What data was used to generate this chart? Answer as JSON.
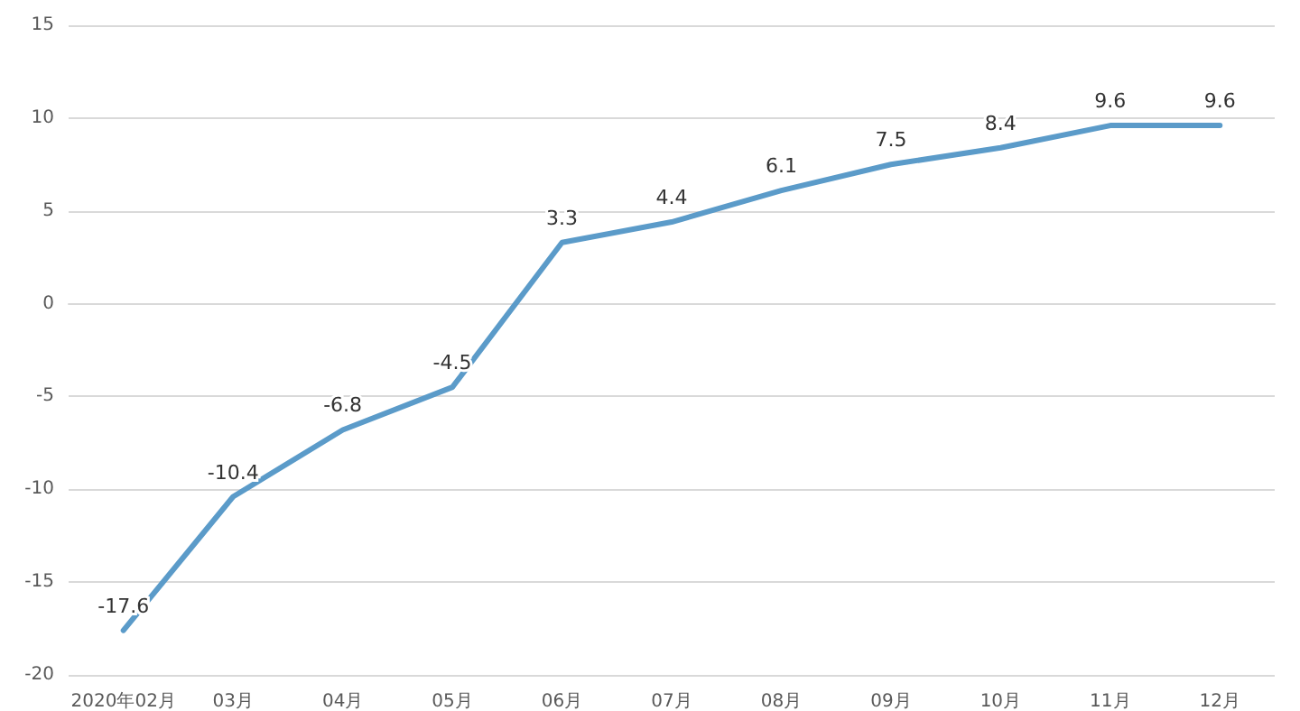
{
  "chart_data": {
    "type": "line",
    "categories": [
      "2020年02月",
      "03月",
      "04月",
      "05月",
      "06月",
      "07月",
      "08月",
      "09月",
      "10月",
      "11月",
      "12月"
    ],
    "series": [
      {
        "color": "#5b9bc9",
        "values": [
          -17.6,
          -10.4,
          -6.8,
          -4.5,
          3.3,
          4.4,
          6.1,
          7.5,
          8.4,
          9.6,
          9.6
        ]
      }
    ],
    "ylim": [
      -20,
      15
    ],
    "yticks": [
      -20,
      -15,
      -10,
      -5,
      0,
      5,
      10,
      15
    ],
    "grid": "y",
    "data_labels": true,
    "marker": "none",
    "line_style": "solid"
  }
}
